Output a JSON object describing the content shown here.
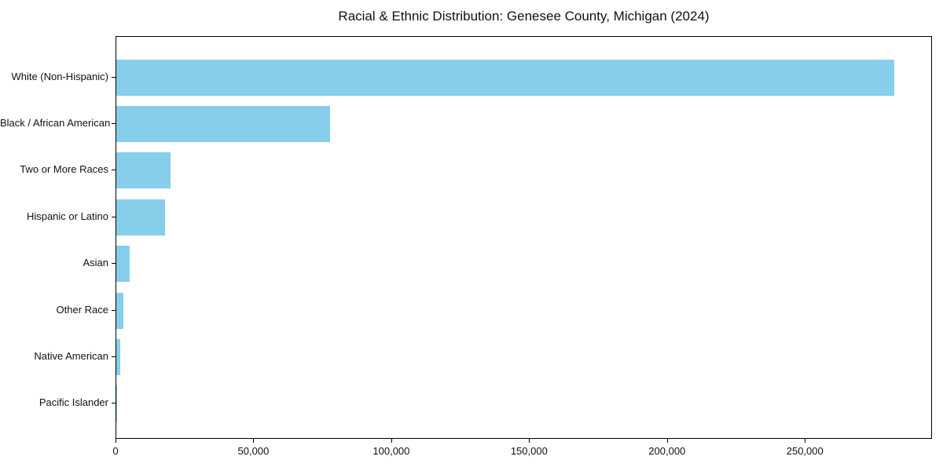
{
  "chart_data": {
    "type": "bar",
    "orientation": "horizontal",
    "title": "Racial & Ethnic Distribution: Genesee County, Michigan (2024)",
    "categories": [
      "White (Non-Hispanic)",
      "Black / African American",
      "Two or More Races",
      "Hispanic or Latino",
      "Asian",
      "Other Race",
      "Native American",
      "Pacific Islander"
    ],
    "values": [
      282000,
      77400,
      19600,
      17800,
      4900,
      2700,
      1300,
      150
    ],
    "bar_color": "#87CEEB",
    "frame_color": "#000000",
    "text_color": "#111111",
    "background_color": "#ffffff",
    "xlabel": "",
    "ylabel": "",
    "xlim": [
      0,
      296100
    ],
    "xticks": [
      0,
      50000,
      100000,
      150000,
      200000,
      250000
    ],
    "xtick_labels": [
      "0",
      "50,000",
      "100,000",
      "150,000",
      "200,000",
      "250,000"
    ],
    "grid": false,
    "legend": null
  }
}
